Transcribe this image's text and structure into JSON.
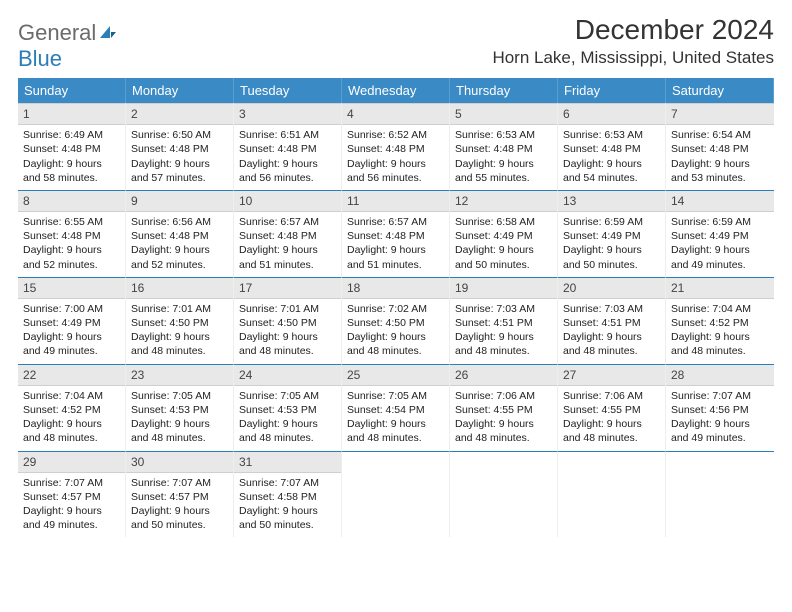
{
  "logo": {
    "part1": "General",
    "part2": "Blue"
  },
  "title": "December 2024",
  "location": "Horn Lake, Mississippi, United States",
  "colors": {
    "header_bg": "#3a8ac6",
    "accent": "#2b7fb8",
    "daynum_bg": "#e8e8e8",
    "text": "#222222"
  },
  "day_labels": [
    "Sunday",
    "Monday",
    "Tuesday",
    "Wednesday",
    "Thursday",
    "Friday",
    "Saturday"
  ],
  "days": [
    {
      "n": "1",
      "sunrise": "6:49 AM",
      "sunset": "4:48 PM",
      "daylight": "9 hours and 58 minutes."
    },
    {
      "n": "2",
      "sunrise": "6:50 AM",
      "sunset": "4:48 PM",
      "daylight": "9 hours and 57 minutes."
    },
    {
      "n": "3",
      "sunrise": "6:51 AM",
      "sunset": "4:48 PM",
      "daylight": "9 hours and 56 minutes."
    },
    {
      "n": "4",
      "sunrise": "6:52 AM",
      "sunset": "4:48 PM",
      "daylight": "9 hours and 56 minutes."
    },
    {
      "n": "5",
      "sunrise": "6:53 AM",
      "sunset": "4:48 PM",
      "daylight": "9 hours and 55 minutes."
    },
    {
      "n": "6",
      "sunrise": "6:53 AM",
      "sunset": "4:48 PM",
      "daylight": "9 hours and 54 minutes."
    },
    {
      "n": "7",
      "sunrise": "6:54 AM",
      "sunset": "4:48 PM",
      "daylight": "9 hours and 53 minutes."
    },
    {
      "n": "8",
      "sunrise": "6:55 AM",
      "sunset": "4:48 PM",
      "daylight": "9 hours and 52 minutes."
    },
    {
      "n": "9",
      "sunrise": "6:56 AM",
      "sunset": "4:48 PM",
      "daylight": "9 hours and 52 minutes."
    },
    {
      "n": "10",
      "sunrise": "6:57 AM",
      "sunset": "4:48 PM",
      "daylight": "9 hours and 51 minutes."
    },
    {
      "n": "11",
      "sunrise": "6:57 AM",
      "sunset": "4:48 PM",
      "daylight": "9 hours and 51 minutes."
    },
    {
      "n": "12",
      "sunrise": "6:58 AM",
      "sunset": "4:49 PM",
      "daylight": "9 hours and 50 minutes."
    },
    {
      "n": "13",
      "sunrise": "6:59 AM",
      "sunset": "4:49 PM",
      "daylight": "9 hours and 50 minutes."
    },
    {
      "n": "14",
      "sunrise": "6:59 AM",
      "sunset": "4:49 PM",
      "daylight": "9 hours and 49 minutes."
    },
    {
      "n": "15",
      "sunrise": "7:00 AM",
      "sunset": "4:49 PM",
      "daylight": "9 hours and 49 minutes."
    },
    {
      "n": "16",
      "sunrise": "7:01 AM",
      "sunset": "4:50 PM",
      "daylight": "9 hours and 48 minutes."
    },
    {
      "n": "17",
      "sunrise": "7:01 AM",
      "sunset": "4:50 PM",
      "daylight": "9 hours and 48 minutes."
    },
    {
      "n": "18",
      "sunrise": "7:02 AM",
      "sunset": "4:50 PM",
      "daylight": "9 hours and 48 minutes."
    },
    {
      "n": "19",
      "sunrise": "7:03 AM",
      "sunset": "4:51 PM",
      "daylight": "9 hours and 48 minutes."
    },
    {
      "n": "20",
      "sunrise": "7:03 AM",
      "sunset": "4:51 PM",
      "daylight": "9 hours and 48 minutes."
    },
    {
      "n": "21",
      "sunrise": "7:04 AM",
      "sunset": "4:52 PM",
      "daylight": "9 hours and 48 minutes."
    },
    {
      "n": "22",
      "sunrise": "7:04 AM",
      "sunset": "4:52 PM",
      "daylight": "9 hours and 48 minutes."
    },
    {
      "n": "23",
      "sunrise": "7:05 AM",
      "sunset": "4:53 PM",
      "daylight": "9 hours and 48 minutes."
    },
    {
      "n": "24",
      "sunrise": "7:05 AM",
      "sunset": "4:53 PM",
      "daylight": "9 hours and 48 minutes."
    },
    {
      "n": "25",
      "sunrise": "7:05 AM",
      "sunset": "4:54 PM",
      "daylight": "9 hours and 48 minutes."
    },
    {
      "n": "26",
      "sunrise": "7:06 AM",
      "sunset": "4:55 PM",
      "daylight": "9 hours and 48 minutes."
    },
    {
      "n": "27",
      "sunrise": "7:06 AM",
      "sunset": "4:55 PM",
      "daylight": "9 hours and 48 minutes."
    },
    {
      "n": "28",
      "sunrise": "7:07 AM",
      "sunset": "4:56 PM",
      "daylight": "9 hours and 49 minutes."
    },
    {
      "n": "29",
      "sunrise": "7:07 AM",
      "sunset": "4:57 PM",
      "daylight": "9 hours and 49 minutes."
    },
    {
      "n": "30",
      "sunrise": "7:07 AM",
      "sunset": "4:57 PM",
      "daylight": "9 hours and 50 minutes."
    },
    {
      "n": "31",
      "sunrise": "7:07 AM",
      "sunset": "4:58 PM",
      "daylight": "9 hours and 50 minutes."
    }
  ],
  "labels": {
    "sunrise": "Sunrise: ",
    "sunset": "Sunset: ",
    "daylight": "Daylight: "
  }
}
